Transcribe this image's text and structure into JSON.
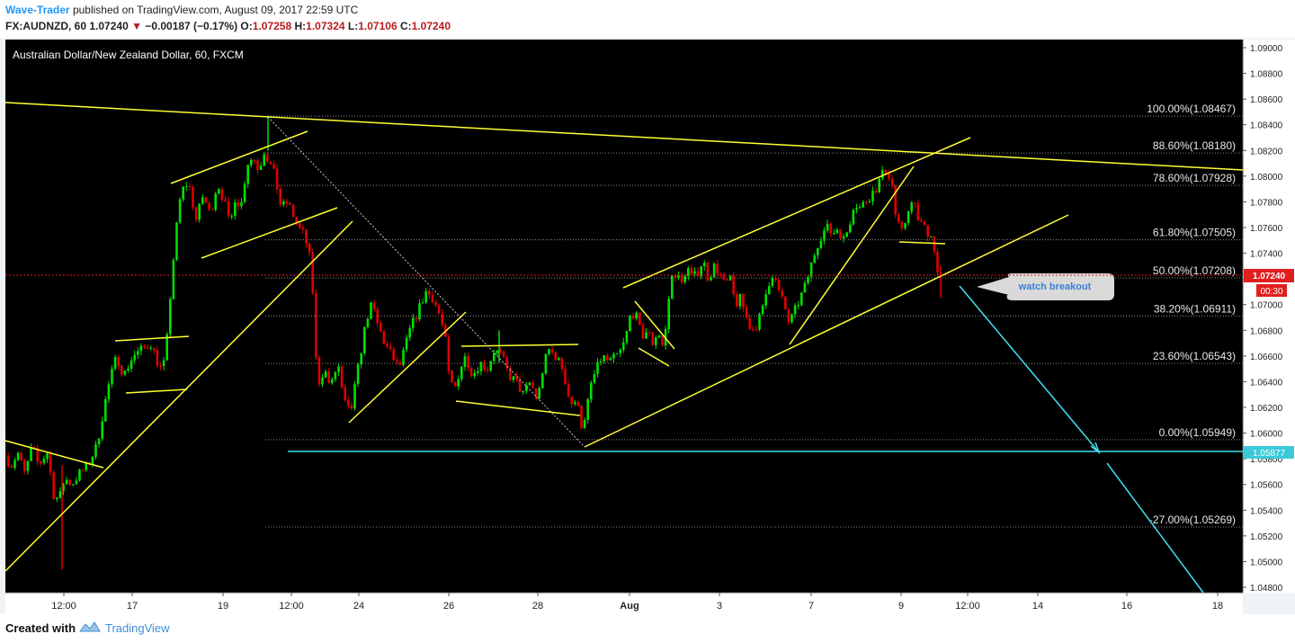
{
  "header": {
    "author": "Wave-Trader",
    "published_text": "published on TradingView.com, August 09, 2017 22:59 UTC",
    "symbol": "FX:AUDNZD, 60",
    "last": "1.07240",
    "arrow": "▼",
    "change": "−0.00187 (−0.17%)",
    "o_label": "O:",
    "o": "1.07258",
    "h_label": "H:",
    "h": "1.07324",
    "l_label": "L:",
    "l": "1.07106",
    "c_label": "C:",
    "c": "1.07240"
  },
  "footer": {
    "created_with": "Created with",
    "brand": "TradingView"
  },
  "colors": {
    "background": "#000000",
    "bull": "#00e000",
    "bear": "#e00000",
    "trend": "#ffff33",
    "projection": "#40e0f0",
    "price_tag": "#e02020",
    "support_tag": "#3cc9d9"
  },
  "chart_data": {
    "type": "candlestick",
    "title": "Australian Dollar/New Zealand Dollar, 60, FXCM",
    "x_ticks": [
      "12:00",
      "17",
      "19",
      "12:00",
      "24",
      "26",
      "28",
      "Aug",
      "3",
      "7",
      "9",
      "12:00",
      "14",
      "16",
      "18"
    ],
    "y_ticks": [
      "1.09000",
      "1.08800",
      "1.08600",
      "1.08400",
      "1.08200",
      "1.08000",
      "1.07800",
      "1.07600",
      "1.07400",
      "1.07200",
      "1.07000",
      "1.06800",
      "1.06600",
      "1.06400",
      "1.06200",
      "1.06000",
      "1.05800",
      "1.05600",
      "1.05400",
      "1.05200",
      "1.05000",
      "1.04800"
    ],
    "y_tick_values": [
      1.09,
      1.088,
      1.086,
      1.084,
      1.082,
      1.08,
      1.078,
      1.076,
      1.074,
      1.072,
      1.07,
      1.068,
      1.066,
      1.064,
      1.062,
      1.06,
      1.058,
      1.056,
      1.054,
      1.052,
      1.05,
      1.048
    ],
    "ylim": [
      1.0479,
      1.0905
    ],
    "price_path": [
      [
        0,
        1.0575
      ],
      [
        8,
        1.0582
      ],
      [
        15,
        1.0575
      ],
      [
        22,
        1.0585
      ],
      [
        30,
        1.0568
      ],
      [
        38,
        1.059
      ],
      [
        45,
        1.0575
      ],
      [
        55,
        1.0585
      ],
      [
        62,
        1.0552
      ],
      [
        68,
        1.0548
      ],
      [
        74,
        1.0565
      ],
      [
        82,
        1.056
      ],
      [
        90,
        1.0568
      ],
      [
        100,
        1.0575
      ],
      [
        110,
        1.059
      ],
      [
        118,
        1.062
      ],
      [
        124,
        1.064
      ],
      [
        132,
        1.066
      ],
      [
        140,
        1.0645
      ],
      [
        150,
        1.066
      ],
      [
        160,
        1.0665
      ],
      [
        170,
        1.067
      ],
      [
        180,
        1.065
      ],
      [
        186,
        1.0655
      ],
      [
        192,
        1.071
      ],
      [
        197,
        1.075
      ],
      [
        202,
        1.078
      ],
      [
        208,
        1.0795
      ],
      [
        214,
        1.079
      ],
      [
        220,
        1.0765
      ],
      [
        228,
        1.0785
      ],
      [
        236,
        1.077
      ],
      [
        244,
        1.0795
      ],
      [
        252,
        1.078
      ],
      [
        258,
        1.076
      ],
      [
        264,
        1.0785
      ],
      [
        270,
        1.0775
      ],
      [
        277,
        1.081
      ],
      [
        284,
        1.0815
      ],
      [
        290,
        1.0805
      ],
      [
        296,
        1.082
      ],
      [
        302,
        1.081
      ],
      [
        308,
        1.08
      ],
      [
        315,
        1.0775
      ],
      [
        322,
        1.078
      ],
      [
        328,
        1.077
      ],
      [
        334,
        1.076
      ],
      [
        340,
        1.0755
      ],
      [
        346,
        1.074
      ],
      [
        350,
        1.071
      ],
      [
        353,
        1.066
      ],
      [
        357,
        1.064
      ],
      [
        363,
        1.065
      ],
      [
        370,
        1.0635
      ],
      [
        378,
        1.0655
      ],
      [
        384,
        1.0625
      ],
      [
        392,
        1.0615
      ],
      [
        398,
        1.064
      ],
      [
        404,
        1.0665
      ],
      [
        410,
        1.069
      ],
      [
        416,
        1.07
      ],
      [
        422,
        1.0685
      ],
      [
        430,
        1.067
      ],
      [
        438,
        1.066
      ],
      [
        446,
        1.065
      ],
      [
        452,
        1.0665
      ],
      [
        458,
        1.068
      ],
      [
        464,
        1.069
      ],
      [
        470,
        1.07
      ],
      [
        476,
        1.071
      ],
      [
        484,
        1.0705
      ],
      [
        492,
        1.069
      ],
      [
        498,
        1.067
      ],
      [
        502,
        1.064
      ],
      [
        508,
        1.0635
      ],
      [
        514,
        1.065
      ],
      [
        520,
        1.066
      ],
      [
        528,
        1.0645
      ],
      [
        536,
        1.0655
      ],
      [
        544,
        1.065
      ],
      [
        552,
        1.0665
      ],
      [
        560,
        1.066
      ],
      [
        568,
        1.0645
      ],
      [
        576,
        1.064
      ],
      [
        584,
        1.063
      ],
      [
        592,
        1.064
      ],
      [
        600,
        1.0625
      ],
      [
        606,
        1.065
      ],
      [
        612,
        1.0665
      ],
      [
        620,
        1.066
      ],
      [
        628,
        1.065
      ],
      [
        634,
        1.063
      ],
      [
        640,
        1.062
      ],
      [
        646,
        1.0625
      ],
      [
        650,
        1.0598
      ],
      [
        654,
        1.0615
      ],
      [
        660,
        1.064
      ],
      [
        666,
        1.065
      ],
      [
        672,
        1.066
      ],
      [
        680,
        1.0655
      ],
      [
        688,
        1.066
      ],
      [
        694,
        1.0665
      ],
      [
        700,
        1.068
      ],
      [
        704,
        1.0695
      ],
      [
        710,
        1.069
      ],
      [
        716,
        1.0675
      ],
      [
        722,
        1.068
      ],
      [
        728,
        1.067
      ],
      [
        734,
        1.068
      ],
      [
        740,
        1.0665
      ],
      [
        744,
        1.069
      ],
      [
        748,
        1.072
      ],
      [
        754,
        1.0725
      ],
      [
        760,
        1.0715
      ],
      [
        766,
        1.073
      ],
      [
        772,
        1.072
      ],
      [
        778,
        1.0725
      ],
      [
        784,
        1.0735
      ],
      [
        790,
        1.072
      ],
      [
        796,
        1.073
      ],
      [
        802,
        1.0725
      ],
      [
        808,
        1.0715
      ],
      [
        814,
        1.072
      ],
      [
        820,
        1.07
      ],
      [
        826,
        1.0705
      ],
      [
        832,
        1.069
      ],
      [
        838,
        1.068
      ],
      [
        844,
        1.0685
      ],
      [
        850,
        1.0695
      ],
      [
        856,
        1.0715
      ],
      [
        862,
        1.0725
      ],
      [
        868,
        1.071
      ],
      [
        874,
        1.07
      ],
      [
        880,
        1.0685
      ],
      [
        886,
        1.0695
      ],
      [
        892,
        1.0705
      ],
      [
        898,
        1.0715
      ],
      [
        904,
        1.073
      ],
      [
        910,
        1.0745
      ],
      [
        916,
        1.0755
      ],
      [
        922,
        1.076
      ],
      [
        928,
        1.0755
      ],
      [
        934,
        1.076
      ],
      [
        940,
        1.075
      ],
      [
        946,
        1.076
      ],
      [
        952,
        1.078
      ],
      [
        958,
        1.0775
      ],
      [
        964,
        1.078
      ],
      [
        970,
        1.0785
      ],
      [
        976,
        1.079
      ],
      [
        982,
        1.08
      ],
      [
        988,
        1.0805
      ],
      [
        994,
        1.0795
      ],
      [
        998,
        1.077
      ],
      [
        1002,
        1.076
      ],
      [
        1006,
        1.0755
      ],
      [
        1012,
        1.0775
      ],
      [
        1018,
        1.078
      ],
      [
        1024,
        1.0765
      ],
      [
        1030,
        1.076
      ],
      [
        1036,
        1.0755
      ],
      [
        1040,
        1.075
      ],
      [
        1044,
        1.073
      ],
      [
        1047,
        1.071
      ],
      [
        1049,
        1.0724
      ]
    ],
    "last_price": "1.07240",
    "countdown": "00:30",
    "support_level": "1.05877",
    "fib_levels": [
      {
        "label": "100.00%(1.08467)",
        "value": 1.08467
      },
      {
        "label": "88.60%(1.08180)",
        "value": 1.0818
      },
      {
        "label": "78.60%(1.07928)",
        "value": 1.07928
      },
      {
        "label": "61.80%(1.07505)",
        "value": 1.07505
      },
      {
        "label": "50.00%(1.07208)",
        "value": 1.07208
      },
      {
        "label": "38.20%(1.06911)",
        "value": 1.06911
      },
      {
        "label": "23.60%(1.06543)",
        "value": 1.06543
      },
      {
        "label": "0.00%(1.05949)",
        "value": 1.05949
      },
      {
        "label": "-27.00%(1.05269)",
        "value": 1.05269
      }
    ],
    "annotation": "watch breakout",
    "grid": false
  }
}
